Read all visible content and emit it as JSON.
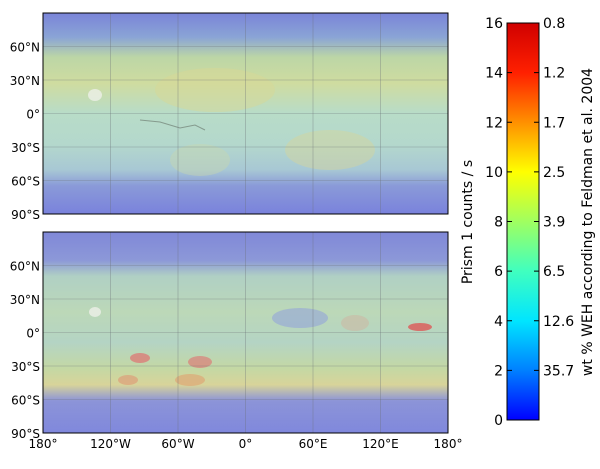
{
  "maps": {
    "lat_ticks": [
      "60°N",
      "30°N",
      "0°",
      "30°S",
      "60°S",
      "90°S"
    ],
    "lon_ticks": [
      "180°",
      "120°W",
      "60°W",
      "0°",
      "60°E",
      "120°E",
      "180°"
    ]
  },
  "colorbar": {
    "left_label": "Prism 1 counts / s",
    "right_label": "wt % WEH according to Feldman et al. 2004",
    "left_ticks": [
      "16",
      "14",
      "12",
      "10",
      "8",
      "6",
      "4",
      "2",
      "0"
    ],
    "right_ticks": [
      "0.8",
      "1.2",
      "1.7",
      "2.5",
      "3.9",
      "6.5",
      "12.6",
      "35.7"
    ],
    "colors": [
      "#0000ff",
      "#0080ff",
      "#00e5ff",
      "#40ffbf",
      "#a0ff60",
      "#ffff00",
      "#ff9000",
      "#ff2000",
      "#d00000"
    ]
  }
}
